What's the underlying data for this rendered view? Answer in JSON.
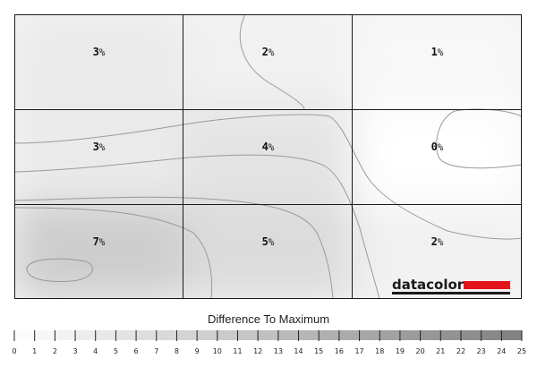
{
  "chart_data": {
    "type": "heatmap",
    "title": "",
    "rows": 3,
    "cols": 3,
    "cells": [
      [
        {
          "value": 3,
          "unit": "%"
        },
        {
          "value": 2,
          "unit": "%"
        },
        {
          "value": 1,
          "unit": "%"
        }
      ],
      [
        {
          "value": 3,
          "unit": "%"
        },
        {
          "value": 4,
          "unit": "%"
        },
        {
          "value": 0,
          "unit": "%"
        }
      ],
      [
        {
          "value": 7,
          "unit": "%"
        },
        {
          "value": 5,
          "unit": "%"
        },
        {
          "value": 2,
          "unit": "%"
        }
      ]
    ],
    "scale": {
      "title": "Difference To Maximum",
      "min": 0,
      "max": 25,
      "ticks": [
        "0",
        "1",
        "2",
        "3",
        "4",
        "5",
        "6",
        "7",
        "8",
        "9",
        "10",
        "11",
        "12",
        "13",
        "14",
        "15",
        "16",
        "17",
        "18",
        "19",
        "20",
        "21",
        "22",
        "23",
        "24",
        "25"
      ],
      "color_low": "#ffffff",
      "color_high": "#808080"
    },
    "grid": true,
    "contours": true
  },
  "logo": {
    "text": "datacolor",
    "accent_color": "#e3151a"
  }
}
